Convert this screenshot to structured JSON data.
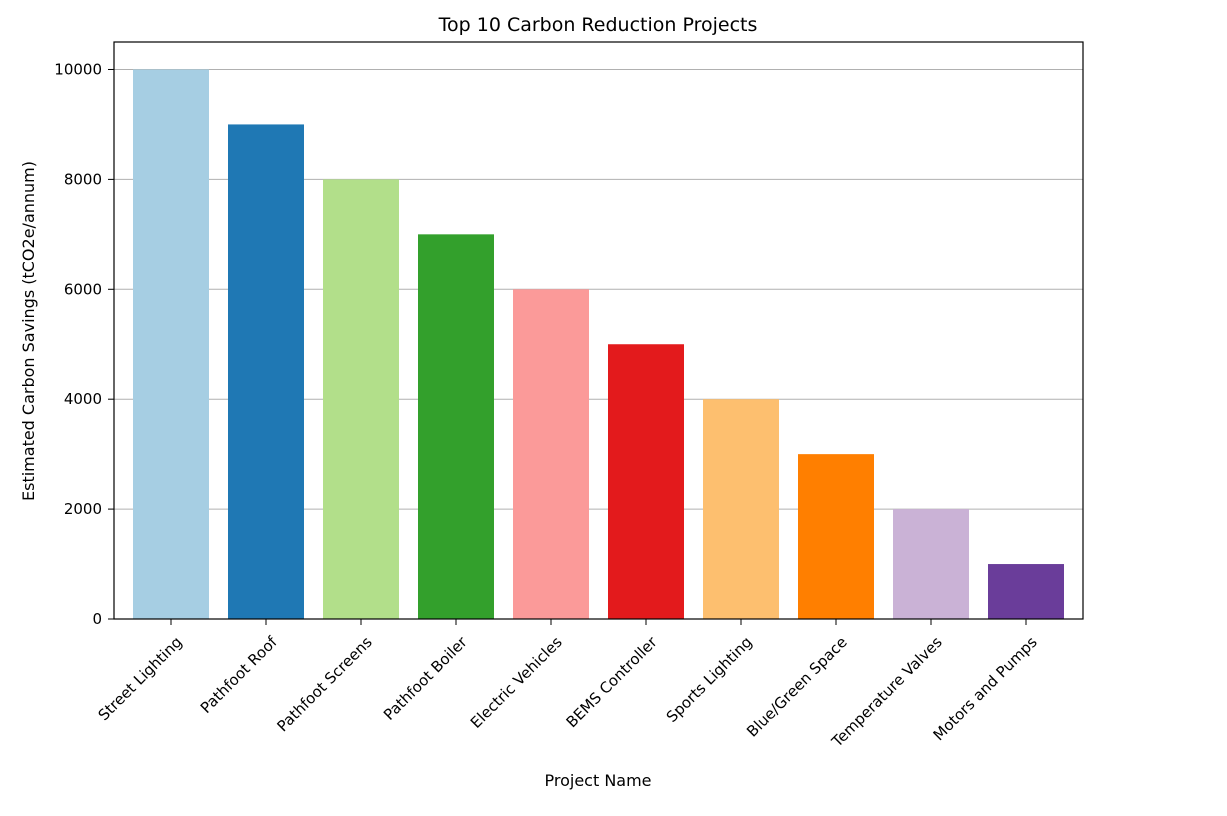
{
  "chart_data": {
    "type": "bar",
    "title": "Top 10 Carbon Reduction Projects",
    "xlabel": "Project Name",
    "ylabel": "Estimated Carbon Savings (tCO2e/annum)",
    "categories": [
      "Street Lighting",
      "Pathfoot Roof",
      "Pathfoot Screens",
      "Pathfoot Boiler",
      "Electric Vehicles",
      "BEMS Controller",
      "Sports Lighting",
      "Blue/Green Space",
      "Temperature Valves",
      "Motors and Pumps"
    ],
    "values": [
      10000,
      9000,
      8000,
      7000,
      6000,
      5000,
      4000,
      3000,
      2000,
      1000
    ],
    "colors": [
      "#a6cee3",
      "#1f78b4",
      "#b2df8a",
      "#33a02c",
      "#fb9a99",
      "#e31a1c",
      "#fdbf6f",
      "#ff7f00",
      "#cab2d6",
      "#6a3d9a"
    ],
    "ylim": [
      0,
      10500
    ],
    "yticks": [
      0,
      2000,
      4000,
      6000,
      8000,
      10000
    ],
    "grid": "horizontal",
    "gridColor": "#b0b0b0"
  }
}
